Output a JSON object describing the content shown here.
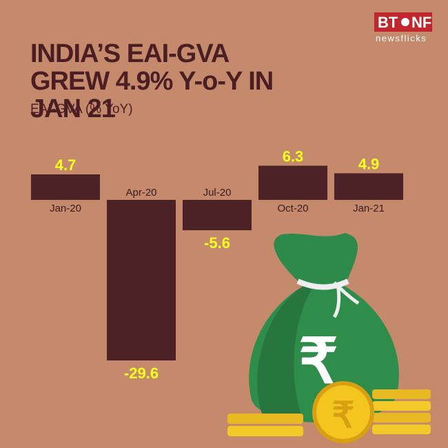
{
  "logo": {
    "left": "BT",
    "right": "NF",
    "tagline": "newsflicks"
  },
  "chart_data": {
    "type": "bar",
    "title": "INDIA’S EAI-GVA GREW 4.9% Y-o-Y IN JAN 21",
    "subtitle": "EAI-GVA (% YoY)",
    "categories": [
      "Jan-20",
      "Apr-20",
      "Jul-20",
      "Oct-20",
      "Jan-21"
    ],
    "values": [
      4.7,
      -29.6,
      -5.6,
      6.3,
      4.9
    ],
    "color": "#4d2226",
    "label_color": "#ffff1e"
  }
}
